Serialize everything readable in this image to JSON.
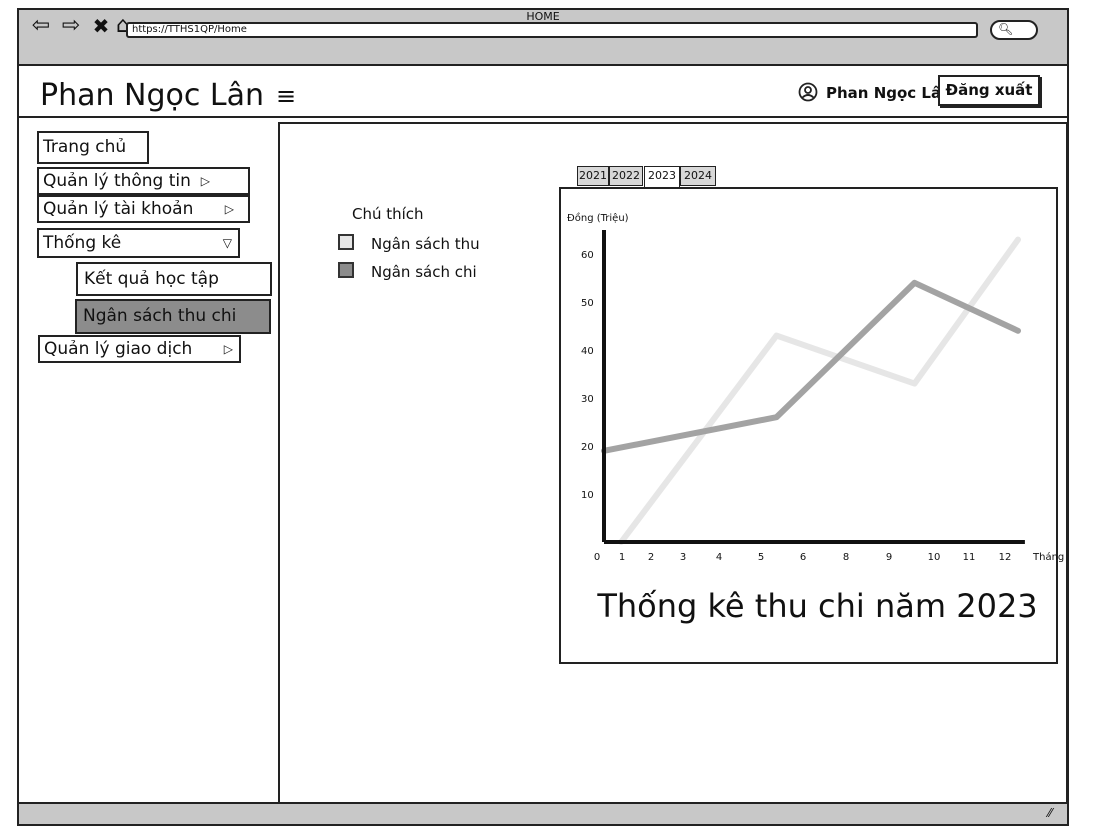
{
  "browser": {
    "title": "HOME",
    "url": "https://TTHS1QP/Home",
    "nav_icons": [
      "back-arrow-icon",
      "forward-arrow-icon",
      "close-icon",
      "home-icon"
    ]
  },
  "header": {
    "brand": "Phan Ngọc Lân",
    "user_name": "Phan Ngọc Lân",
    "logout_label": "Đăng xuất"
  },
  "sidebar": {
    "items": [
      {
        "label": "Trang chủ"
      },
      {
        "label": "Quản lý thông tin",
        "arrow": "▷"
      },
      {
        "label": "Quản lý tài khoản",
        "arrow": "▷"
      },
      {
        "label": "Thống kê",
        "arrow": "▽"
      },
      {
        "label": "Kết quả học tập"
      },
      {
        "label": "Ngân sách thu chi"
      },
      {
        "label": "Quản lý giao dịch",
        "arrow": "▷"
      }
    ]
  },
  "legend": {
    "title": "Chú thích",
    "items": [
      {
        "label": "Ngân sách thu",
        "color": "#e6e6e6"
      },
      {
        "label": "Ngân sách chi",
        "color": "#8c8c8c"
      }
    ]
  },
  "tabs": [
    "2021",
    "2022",
    "2023",
    "2024"
  ],
  "active_tab": "2023",
  "chart_data": {
    "type": "line",
    "title": "Thống kê thu chi năm 2023",
    "ylabel": "Đồng (Triệu)",
    "xlabel": "Tháng",
    "x_ticks": [
      "0",
      "1",
      "2",
      "3",
      "4",
      "5",
      "6",
      "8",
      "9",
      "10",
      "11",
      "12"
    ],
    "y_ticks": [
      10,
      20,
      30,
      40,
      50,
      60
    ],
    "series": [
      {
        "name": "Ngân sách thu",
        "color": "#e6e6e6",
        "points": [
          [
            0.5,
            0
          ],
          [
            5,
            43
          ],
          [
            9,
            33
          ],
          [
            12,
            63
          ]
        ]
      },
      {
        "name": "Ngân sách chi",
        "color": "#a3a3a3",
        "points": [
          [
            0,
            19
          ],
          [
            5,
            26
          ],
          [
            9,
            54
          ],
          [
            12,
            44
          ]
        ]
      }
    ]
  }
}
